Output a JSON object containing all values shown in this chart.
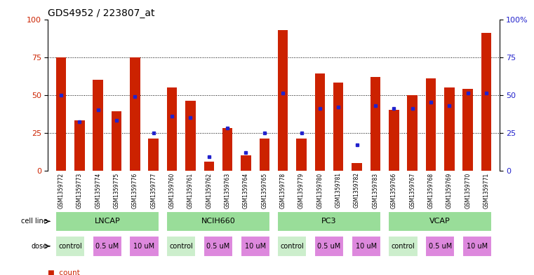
{
  "title": "GDS4952 / 223807_at",
  "samples": [
    "GSM1359772",
    "GSM1359773",
    "GSM1359774",
    "GSM1359775",
    "GSM1359776",
    "GSM1359777",
    "GSM1359760",
    "GSM1359761",
    "GSM1359762",
    "GSM1359763",
    "GSM1359764",
    "GSM1359765",
    "GSM1359778",
    "GSM1359779",
    "GSM1359780",
    "GSM1359781",
    "GSM1359782",
    "GSM1359783",
    "GSM1359766",
    "GSM1359767",
    "GSM1359768",
    "GSM1359769",
    "GSM1359770",
    "GSM1359771"
  ],
  "count": [
    75,
    33,
    60,
    39,
    75,
    21,
    55,
    46,
    6,
    28,
    10,
    21,
    93,
    21,
    64,
    58,
    5,
    62,
    40,
    50,
    61,
    55,
    54,
    91
  ],
  "percentile": [
    50,
    32,
    40,
    33,
    49,
    25,
    36,
    35,
    9,
    28,
    12,
    25,
    51,
    25,
    41,
    42,
    17,
    43,
    41,
    41,
    45,
    43,
    51,
    51
  ],
  "bar_color": "#cc2200",
  "dot_color": "#2222cc",
  "bg_color": "#ffffff",
  "ylim": [
    0,
    100
  ],
  "cell_line_color": "#99dd99",
  "cell_line_bg": "#cceecc",
  "dose_control_color": "#cceecc",
  "dose_um_color": "#dd88dd",
  "tick_color_left": "#cc2200",
  "tick_color_right": "#2222cc",
  "title_fontsize": 10,
  "bar_width": 0.55,
  "cell_line_spans": [
    {
      "name": "LNCAP",
      "start": 0,
      "end": 5
    },
    {
      "name": "NCIH660",
      "start": 6,
      "end": 11
    },
    {
      "name": "PC3",
      "start": 12,
      "end": 17
    },
    {
      "name": "VCAP",
      "start": 18,
      "end": 23
    }
  ],
  "dose_spans": [
    {
      "name": "control",
      "start": 0,
      "end": 1,
      "color": "#cceecc"
    },
    {
      "name": "0.5 uM",
      "start": 2,
      "end": 3,
      "color": "#dd88dd"
    },
    {
      "name": "10 uM",
      "start": 4,
      "end": 5,
      "color": "#dd88dd"
    },
    {
      "name": "control",
      "start": 6,
      "end": 7,
      "color": "#cceecc"
    },
    {
      "name": "0.5 uM",
      "start": 8,
      "end": 9,
      "color": "#dd88dd"
    },
    {
      "name": "10 uM",
      "start": 10,
      "end": 11,
      "color": "#dd88dd"
    },
    {
      "name": "control",
      "start": 12,
      "end": 13,
      "color": "#cceecc"
    },
    {
      "name": "0.5 uM",
      "start": 14,
      "end": 15,
      "color": "#dd88dd"
    },
    {
      "name": "10 uM",
      "start": 16,
      "end": 17,
      "color": "#dd88dd"
    },
    {
      "name": "control",
      "start": 18,
      "end": 19,
      "color": "#cceecc"
    },
    {
      "name": "0.5 uM",
      "start": 20,
      "end": 21,
      "color": "#dd88dd"
    },
    {
      "name": "10 uM",
      "start": 22,
      "end": 23,
      "color": "#dd88dd"
    }
  ]
}
